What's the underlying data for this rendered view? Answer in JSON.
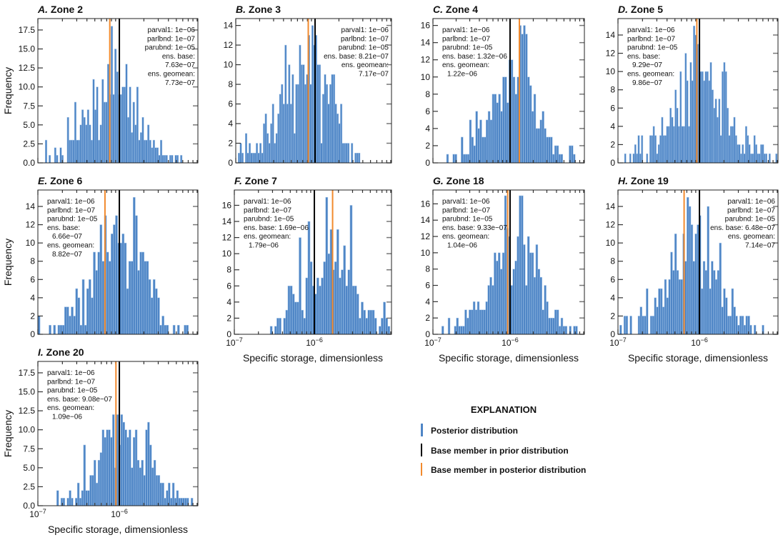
{
  "chart_data": [
    {
      "type": "bar",
      "panel": "A.",
      "title": "Zone 2",
      "ylabel": "Frequency",
      "xlabel": "",
      "x_scale": "log",
      "xlim": [
        1e-07,
        9.2e-06
      ],
      "ylim": [
        0,
        19
      ],
      "yticks": [
        0,
        2.5,
        5,
        7.5,
        10,
        12.5,
        15,
        17.5
      ],
      "ytick_labels": [
        "0.0",
        "2.5",
        "5.0",
        "7.5",
        "10.0",
        "12.5",
        "15.0",
        "17.5"
      ],
      "xtick_labels": [],
      "annotation": [
        "parval1: 1e−06",
        "parlbnd: 1e−07",
        "parubnd: 1e−05",
        "ens. base:",
        "7.63e−07",
        "ens. geomean:",
        "7.73e−07"
      ],
      "annotation_position": "top-right",
      "prior_base": 1e-06,
      "posterior_base": 7.63e-07,
      "bins": {
        "min": 1.23e-07,
        "max": 5.9e-06
      },
      "counts": [
        3,
        0,
        1,
        0,
        0,
        2,
        1,
        0,
        2,
        1,
        0,
        0,
        6,
        3,
        3,
        3,
        8,
        3,
        3,
        5,
        7,
        6,
        5,
        7,
        5,
        3,
        11,
        7,
        10,
        3,
        5,
        11,
        8,
        8,
        13,
        9,
        18,
        9,
        15,
        12,
        9,
        9,
        10,
        10,
        13,
        6,
        10,
        4,
        8,
        5,
        10,
        3,
        4,
        6,
        3,
        3,
        5,
        3,
        2,
        3,
        2,
        2,
        1,
        3,
        1,
        1,
        1,
        0,
        1,
        1,
        0,
        1,
        1,
        0,
        1
      ]
    },
    {
      "type": "bar",
      "panel": "B.",
      "title": "Zone 3",
      "ylabel": "",
      "xlabel": "",
      "x_scale": "log",
      "xlim": [
        1e-07,
        9.2e-06
      ],
      "ylim": [
        0,
        14.7
      ],
      "yticks": [
        0,
        2,
        4,
        6,
        8,
        10,
        12,
        14
      ],
      "ytick_labels": [
        "0",
        "2",
        "4",
        "6",
        "8",
        "10",
        "12",
        "14"
      ],
      "xtick_labels": [],
      "annotation": [
        "parval1: 1e−06",
        "parlbnd: 1e−07",
        "parubnd: 1e−05",
        "ens. base: 8.21e−07",
        "ens. geomean:",
        "7.17e−07"
      ],
      "annotation_position": "top-right",
      "prior_base": 1e-06,
      "posterior_base": 8.21e-07,
      "bins": {
        "min": 1.07e-07,
        "max": 4.1e-06
      },
      "counts": [
        1,
        2,
        1,
        0,
        3,
        1,
        2,
        1,
        1,
        1,
        2,
        1,
        2,
        1,
        4,
        5,
        3,
        2,
        4,
        6,
        2,
        3,
        5,
        7,
        8,
        6,
        12,
        6,
        10,
        6,
        9,
        3,
        8,
        8,
        12,
        10,
        10,
        8,
        9,
        13,
        8,
        14,
        12,
        13,
        10,
        10,
        2,
        7,
        9,
        8,
        6,
        8,
        9,
        9,
        6,
        5,
        4,
        6,
        2,
        2,
        2,
        2,
        0,
        2,
        0,
        1,
        1,
        1,
        0,
        0
      ]
    },
    {
      "type": "bar",
      "panel": "C.",
      "title": "Zone 4",
      "ylabel": "",
      "xlabel": "",
      "x_scale": "log",
      "xlim": [
        1e-07,
        9.2e-06
      ],
      "ylim": [
        0,
        16.8
      ],
      "yticks": [
        0,
        2,
        4,
        6,
        8,
        10,
        12,
        14,
        16
      ],
      "ytick_labels": [
        "0",
        "2",
        "4",
        "6",
        "8",
        "10",
        "12",
        "14",
        "16"
      ],
      "xtick_labels": [],
      "annotation": [
        "parval1: 1e−06",
        "parlbnd: 1e−07",
        "parubnd: 1e−05",
        "ens. base: 1.32e−06",
        "ens. geomean:",
        "1.22e−06"
      ],
      "annotation_position": "top-left",
      "prior_base": 1e-06,
      "posterior_base": 1.32e-06,
      "bins": {
        "min": 1.5e-07,
        "max": 7e-06
      },
      "counts": [
        1,
        0,
        0,
        1,
        1,
        0,
        0,
        3,
        1,
        1,
        1,
        5,
        3,
        2,
        6,
        4,
        5,
        3,
        3,
        5,
        6,
        5,
        8,
        8,
        7,
        8,
        6,
        10,
        10,
        7,
        12,
        12,
        10,
        8,
        10,
        16,
        15,
        16,
        15,
        10,
        9,
        6,
        8,
        4,
        4,
        5,
        6,
        4,
        3,
        3,
        3,
        1,
        2,
        2,
        1,
        1,
        0,
        0,
        0,
        2,
        2,
        1
      ]
    },
    {
      "type": "bar",
      "panel": "D.",
      "title": "Zone 5",
      "ylabel": "",
      "xlabel": "",
      "x_scale": "log",
      "xlim": [
        1e-07,
        9.2e-06
      ],
      "ylim": [
        0,
        15.8
      ],
      "yticks": [
        0,
        2,
        4,
        6,
        8,
        10,
        12,
        14
      ],
      "ytick_labels": [
        "0",
        "2",
        "4",
        "6",
        "8",
        "10",
        "12",
        "14"
      ],
      "xtick_labels": [],
      "annotation": [
        "parval1: 1e−06",
        "parlbnd: 1e−07",
        "parubnd: 1e−05",
        "ens. base:",
        "9.29e−07",
        "ens. geomean:",
        "9.86e−07"
      ],
      "annotation_position": "top-left",
      "prior_base": 1e-06,
      "posterior_base": 9.29e-07,
      "bins": {
        "min": 1.2e-07,
        "max": 9e-06
      },
      "counts": [
        1,
        0,
        0,
        1,
        0,
        1,
        2,
        1,
        3,
        1,
        3,
        0,
        0,
        1,
        0,
        3,
        3,
        4,
        3,
        1,
        2,
        3,
        5,
        3,
        3,
        4,
        4,
        6,
        5,
        4,
        8,
        6,
        4,
        10,
        4,
        4,
        12,
        9,
        4,
        11,
        9,
        15,
        14,
        13,
        13,
        10,
        10,
        9,
        10,
        10,
        9,
        11,
        8,
        6,
        7,
        5,
        7,
        3,
        10,
        11,
        10,
        6,
        3,
        4,
        4,
        5,
        3,
        2,
        2,
        1,
        2,
        1,
        4,
        3,
        2,
        1,
        1,
        3,
        2,
        1,
        1,
        2,
        2,
        1,
        1,
        0,
        1,
        0,
        0,
        0,
        1
      ]
    },
    {
      "type": "bar",
      "panel": "E.",
      "title": "Zone 6",
      "ylabel": "Frequency",
      "xlabel": "",
      "x_scale": "log",
      "xlim": [
        1e-07,
        9.2e-06
      ],
      "ylim": [
        0,
        15.8
      ],
      "yticks": [
        0,
        2,
        4,
        6,
        8,
        10,
        12,
        14
      ],
      "ytick_labels": [
        "0",
        "2",
        "4",
        "6",
        "8",
        "10",
        "12",
        "14"
      ],
      "xtick_labels": [],
      "annotation": [
        "parval1: 1e−06",
        "parlbnd: 1e−07",
        "parubnd: 1e−05",
        "ens. base:",
        "6.66e−07",
        "ens. geomean:",
        "8.82e−07"
      ],
      "annotation_position": "top-left",
      "prior_base": 1e-06,
      "posterior_base": 6.66e-07,
      "bins": {
        "min": 1e-07,
        "max": 7.5e-06
      },
      "counts": [
        2,
        0,
        0,
        0,
        0,
        1,
        0,
        1,
        0,
        1,
        1,
        1,
        3,
        3,
        2,
        3,
        2,
        5,
        4,
        1,
        6,
        1,
        5,
        6,
        4,
        9,
        7,
        9,
        12,
        8,
        13,
        9,
        8,
        11,
        12,
        13,
        10,
        10,
        11,
        10,
        5,
        8,
        8,
        15,
        13,
        7,
        9,
        9,
        8,
        8,
        6,
        4,
        6,
        5,
        4,
        1,
        2,
        1,
        1,
        0,
        0,
        1,
        0,
        1,
        0,
        0,
        1,
        1,
        0
      ]
    },
    {
      "type": "bar",
      "panel": "F.",
      "title": "Zone 7",
      "ylabel": "",
      "xlabel": "Specific storage, dimensionless",
      "x_scale": "log",
      "xlim": [
        1e-07,
        9.2e-06
      ],
      "ylim": [
        0,
        17.9
      ],
      "yticks": [
        0,
        2,
        4,
        6,
        8,
        10,
        12,
        14,
        16
      ],
      "ytick_labels": [
        "0",
        "2",
        "4",
        "6",
        "8",
        "10",
        "12",
        "14",
        "16"
      ],
      "xtick_labels": [
        {
          "base": "10",
          "exp": "−7"
        },
        {
          "base": "10",
          "exp": "−6"
        }
      ],
      "annotation": [
        "parval1: 1e−06",
        "parlbnd: 1e−07",
        "parubnd: 1e−05",
        "ens. base: 1.69e−06",
        "ens. geomean:",
        "1.79e−06"
      ],
      "annotation_position": "top-left",
      "prior_base": 1e-06,
      "posterior_base": 1.69e-06,
      "bins": {
        "min": 2.8e-07,
        "max": 8.8e-06
      },
      "counts": [
        1,
        0,
        1,
        2,
        2,
        0,
        2,
        3,
        6,
        6,
        5,
        4,
        4,
        12,
        3,
        2,
        7,
        14,
        9,
        6,
        5,
        7,
        6,
        7,
        9,
        17,
        10,
        13,
        8,
        9,
        13,
        7,
        8,
        11,
        6,
        8,
        16,
        6,
        6,
        5,
        2,
        4,
        3,
        2,
        3,
        3,
        3,
        2,
        0,
        1,
        2,
        4,
        2,
        1
      ]
    },
    {
      "type": "bar",
      "panel": "G.",
      "title": "Zone 18",
      "ylabel": "",
      "xlabel": "Specific storage, dimensionless",
      "x_scale": "log",
      "xlim": [
        1e-07,
        9.2e-06
      ],
      "ylim": [
        0,
        17.7
      ],
      "yticks": [
        0,
        2,
        4,
        6,
        8,
        10,
        12,
        14,
        16
      ],
      "ytick_labels": [
        "0",
        "2",
        "4",
        "6",
        "8",
        "10",
        "12",
        "14",
        "16"
      ],
      "xtick_labels": [
        {
          "base": "10",
          "exp": "−7"
        },
        {
          "base": "10",
          "exp": "−6"
        }
      ],
      "annotation": [
        "parval1: 1e−06",
        "parlbnd: 1e−07",
        "parubnd: 1e−05",
        "ens. base: 9.33e−07",
        "ens. geomean:",
        "1.04e−06"
      ],
      "annotation_position": "top-left",
      "prior_base": 1e-06,
      "posterior_base": 9.33e-07,
      "bins": {
        "min": 1.3e-07,
        "max": 7.5e-06
      },
      "counts": [
        1,
        0,
        0,
        2,
        0,
        0,
        1,
        2,
        1,
        1,
        1,
        3,
        2,
        3,
        3,
        4,
        3,
        4,
        3,
        3,
        3,
        4,
        6,
        7,
        6,
        10,
        9,
        10,
        8,
        10,
        17,
        13,
        12,
        6,
        8,
        9,
        12,
        17,
        17,
        11,
        6,
        12,
        10,
        10,
        7,
        11,
        8,
        7,
        3,
        6,
        4,
        2,
        2,
        2,
        3,
        3,
        1,
        2,
        1,
        1,
        0,
        1,
        0,
        1,
        1
      ]
    },
    {
      "type": "bar",
      "panel": "H.",
      "title": "Zone 19",
      "ylabel": "",
      "xlabel": "Specific storage, dimensionless",
      "x_scale": "log",
      "xlim": [
        1e-07,
        9.2e-06
      ],
      "ylim": [
        0,
        15.8
      ],
      "yticks": [
        0,
        2,
        4,
        6,
        8,
        10,
        12,
        14
      ],
      "ytick_labels": [
        "0",
        "2",
        "4",
        "6",
        "8",
        "10",
        "12",
        "14"
      ],
      "xtick_labels": [
        {
          "base": "10",
          "exp": "−7"
        },
        {
          "base": "10",
          "exp": "−6"
        }
      ],
      "annotation": [
        "parval1: 1e−06",
        "parlbnd: 1e−07",
        "parubnd: 1e−05",
        "ens. base: 6.48e−07",
        "ens. geomean:",
        "7.14e−07"
      ],
      "annotation_position": "top-right",
      "prior_base": 1e-06,
      "posterior_base": 6.48e-07,
      "bins": {
        "min": 1.05e-07,
        "max": 6.2e-06
      },
      "counts": [
        1,
        0,
        2,
        2,
        0,
        2,
        0,
        0,
        0,
        2,
        3,
        2,
        2,
        5,
        0,
        2,
        2,
        4,
        3,
        5,
        5,
        3,
        6,
        4,
        6,
        9,
        7,
        11,
        7,
        6,
        6,
        11,
        8,
        15,
        14,
        12,
        8,
        11,
        12,
        13,
        5,
        8,
        7,
        14,
        5,
        8,
        7,
        6,
        7,
        10,
        3,
        5,
        4,
        2,
        2,
        5,
        3,
        2,
        1,
        2,
        2,
        1,
        2,
        2,
        1,
        0,
        1,
        0,
        0,
        0,
        1
      ]
    },
    {
      "type": "bar",
      "panel": "I.",
      "title": "Zone 20",
      "ylabel": "Frequency",
      "xlabel": "Specific storage, dimensionless",
      "x_scale": "log",
      "xlim": [
        1e-07,
        9.2e-06
      ],
      "ylim": [
        0,
        19
      ],
      "yticks": [
        0,
        2.5,
        5,
        7.5,
        10,
        12.5,
        15,
        17.5
      ],
      "ytick_labels": [
        "0.0",
        "2.5",
        "5.0",
        "7.5",
        "10.0",
        "12.5",
        "15.0",
        "17.5"
      ],
      "xtick_labels": [
        {
          "base": "10",
          "exp": "−7"
        },
        {
          "base": "10",
          "exp": "−6"
        }
      ],
      "annotation": [
        "parval1: 1e−06",
        "parlbnd: 1e−07",
        "parubnd: 1e−05",
        "ens. base: 9.08e−07",
        "ens. geomean:",
        "1.09e−06"
      ],
      "annotation_position": "top-left",
      "prior_base": 1e-06,
      "posterior_base": 9.08e-07,
      "bins": {
        "min": 1.7e-07,
        "max": 8e-06
      },
      "counts": [
        2,
        0,
        1,
        1,
        0,
        1,
        2,
        1,
        0,
        1,
        3,
        1,
        2,
        8,
        2,
        2,
        4,
        4,
        6,
        3,
        6,
        7,
        10,
        9,
        10,
        10,
        9,
        12,
        5,
        12,
        8,
        12,
        11,
        10,
        9,
        10,
        5,
        9,
        10,
        6,
        5,
        6,
        4,
        10,
        11,
        8,
        5,
        6,
        4,
        4,
        3,
        3,
        1,
        2,
        3,
        1,
        3,
        1,
        2,
        1,
        1,
        1,
        1,
        1,
        0,
        1
      ]
    }
  ],
  "legend": {
    "title": "EXPLANATION",
    "items": [
      {
        "label": "Posterior distribution",
        "color": "#4f86c6"
      },
      {
        "label": "Base member in prior distribution",
        "color": "#000000"
      },
      {
        "label": "Base member in posterior distribution",
        "color": "#f28a2e"
      }
    ]
  },
  "colors": {
    "bars": "#4f86c6",
    "bar_edge": "#a9c8ea",
    "prior_line": "#000000",
    "posterior_line": "#f28a2e"
  }
}
